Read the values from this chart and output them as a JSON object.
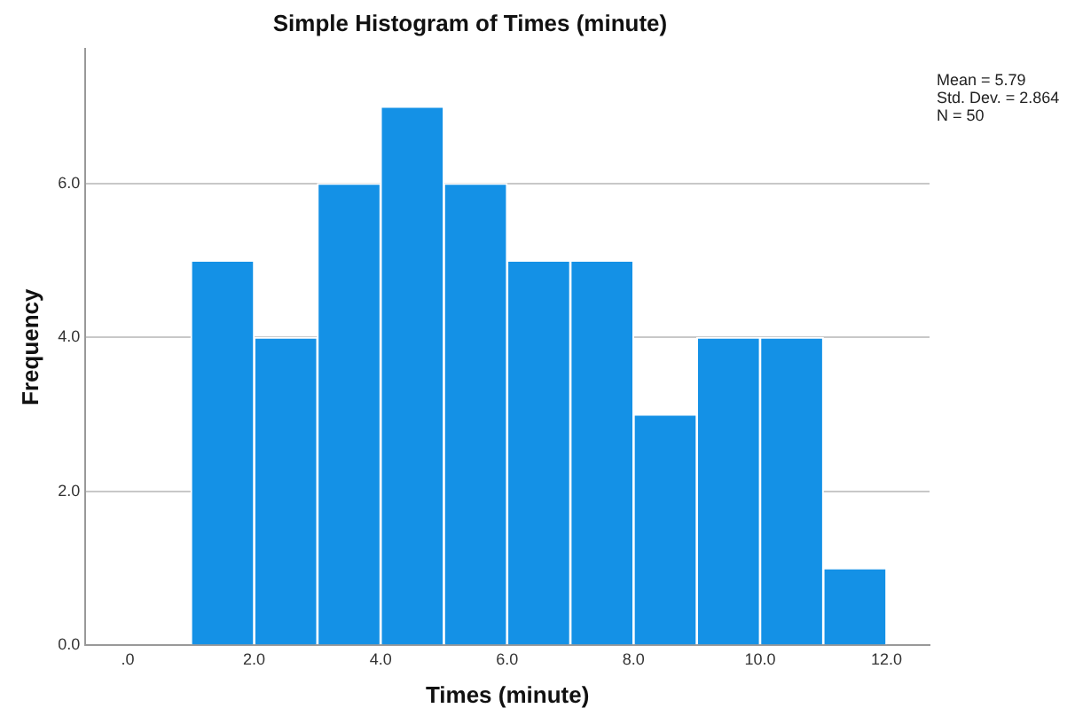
{
  "chart_data": {
    "type": "histogram",
    "title": "Simple Histogram of Times (minute)",
    "xlabel": "Times (minute)",
    "ylabel": "Frequency",
    "bins": [
      1,
      2,
      3,
      4,
      5,
      6,
      7,
      8,
      9,
      10,
      11,
      12
    ],
    "values": [
      5,
      4,
      6,
      7,
      6,
      5,
      5,
      3,
      4,
      4,
      1
    ],
    "color": "#1491e6",
    "xlim": [
      -0.67,
      12.68
    ],
    "xticks": [
      {
        "value": 0,
        "label": ".0"
      },
      {
        "value": 2,
        "label": "2.0"
      },
      {
        "value": 4,
        "label": "4.0"
      },
      {
        "value": 6,
        "label": "6.0"
      },
      {
        "value": 8,
        "label": "8.0"
      },
      {
        "value": 10,
        "label": "10.0"
      },
      {
        "value": 12,
        "label": "12.0"
      }
    ],
    "ylim": [
      0,
      7.75
    ],
    "yticks": [
      {
        "value": 0,
        "label": "0.0"
      },
      {
        "value": 2,
        "label": "2.0"
      },
      {
        "value": 4,
        "label": "4.0"
      },
      {
        "value": 6,
        "label": "6.0"
      }
    ],
    "grid": "y",
    "legend": false,
    "annotations": [
      "Mean = 5.79",
      "Std. Dev. = 2.864",
      "N = 50"
    ]
  }
}
